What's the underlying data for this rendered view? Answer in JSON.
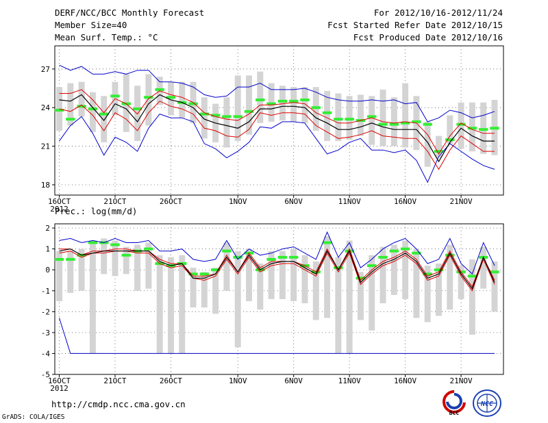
{
  "header": {
    "title": "DERF/NCC/BCC Monthly Forecast",
    "members": "Member Size=40",
    "variable": "Mean Surf. Temp.: °C",
    "period": "For 2012/10/16-2012/11/24",
    "started": "Fcst Started Refer Date 2012/10/15",
    "produced": "Fcst Produced Date 2012/10/16"
  },
  "footer": {
    "url": "http://cmdp.ncc.cma.gov.cn",
    "grads": "GrADS: COLA/IGES",
    "logo_bcc": "BCC",
    "logo_ncc": "NCC"
  },
  "colors": {
    "box": "#d4d4d4",
    "mean": "#000000",
    "spread": "#dd0000",
    "extreme": "#0000cc",
    "median": "#33ee33",
    "grid": "#555555"
  },
  "chart_data": [
    {
      "type": "box-ensemble",
      "title": "Mean Surf. Temp.: °C",
      "xlabel": "",
      "ylabel": "°C",
      "ylim": [
        17.2,
        28.8
      ],
      "yticks": [
        18,
        21,
        24,
        27
      ],
      "xlim": [
        -0.4,
        39.8
      ],
      "xtick_positions": [
        0,
        5,
        10,
        16,
        21,
        26,
        31,
        36
      ],
      "xtick_labels": [
        "16OCT",
        "21OCT",
        "26OCT",
        "1NOV",
        "6NOV",
        "11NOV",
        "16NOV",
        "21NOV"
      ],
      "year_label": "2012",
      "days": 40,
      "mean": [
        24.6,
        24.5,
        25.0,
        24.0,
        23.0,
        24.3,
        23.9,
        22.9,
        24.3,
        25.0,
        24.6,
        24.4,
        24.0,
        23.1,
        22.8,
        22.6,
        22.4,
        22.9,
        23.9,
        23.9,
        24.1,
        24.1,
        24.0,
        23.2,
        22.8,
        22.3,
        22.3,
        22.5,
        22.8,
        22.5,
        22.3,
        22.3,
        22.3,
        21.3,
        19.8,
        21.3,
        22.4,
        21.8,
        21.4,
        21.4
      ],
      "upper": [
        25.1,
        25.1,
        25.4,
        24.6,
        23.6,
        24.7,
        24.3,
        23.5,
        24.7,
        25.3,
        25.0,
        24.8,
        24.4,
        23.6,
        23.3,
        23.1,
        23.0,
        23.5,
        24.2,
        24.2,
        24.3,
        24.4,
        24.3,
        23.6,
        23.2,
        22.8,
        22.8,
        23.0,
        23.2,
        22.9,
        22.8,
        22.9,
        22.8,
        21.9,
        20.4,
        21.8,
        22.8,
        22.3,
        22.0,
        22.0
      ],
      "lower": [
        23.9,
        23.7,
        24.2,
        23.4,
        22.2,
        23.6,
        23.1,
        22.2,
        23.6,
        24.5,
        24.1,
        23.9,
        23.5,
        22.4,
        22.2,
        21.8,
        21.7,
        22.3,
        23.6,
        23.4,
        23.6,
        23.6,
        23.5,
        22.6,
        22.1,
        21.6,
        21.7,
        21.9,
        22.2,
        21.8,
        21.7,
        21.6,
        21.6,
        20.6,
        19.2,
        20.7,
        21.8,
        21.2,
        20.6,
        20.6
      ],
      "max": [
        27.3,
        26.9,
        27.2,
        26.6,
        26.6,
        26.8,
        26.6,
        26.9,
        26.9,
        26.0,
        26.0,
        25.9,
        25.6,
        25.0,
        24.8,
        24.9,
        25.6,
        25.6,
        25.9,
        25.4,
        25.4,
        25.4,
        25.5,
        25.2,
        24.8,
        24.6,
        24.5,
        24.5,
        24.6,
        24.5,
        24.6,
        24.3,
        24.4,
        22.9,
        23.2,
        23.8,
        23.6,
        23.2,
        23.4,
        23.7
      ],
      "min": [
        21.4,
        22.6,
        23.3,
        22.0,
        20.3,
        21.7,
        21.3,
        20.6,
        22.4,
        23.5,
        23.2,
        23.2,
        22.9,
        21.2,
        20.8,
        20.1,
        20.6,
        21.3,
        22.5,
        22.4,
        22.9,
        22.9,
        22.8,
        21.6,
        20.4,
        20.7,
        21.3,
        21.6,
        20.7,
        20.7,
        20.5,
        20.7,
        19.9,
        18.2,
        20.2,
        21.2,
        20.6,
        20.0,
        19.5,
        19.2
      ],
      "median": [
        23.8,
        23.1,
        24.1,
        23.9,
        23.5,
        24.9,
        24.3,
        23.9,
        24.8,
        25.4,
        24.8,
        24.4,
        24.3,
        23.5,
        23.4,
        23.3,
        23.3,
        23.7,
        24.6,
        24.3,
        24.5,
        24.5,
        24.6,
        24.0,
        23.6,
        23.1,
        23.1,
        23.0,
        23.3,
        22.7,
        22.7,
        22.8,
        22.9,
        22.7,
        20.6,
        21.5,
        22.7,
        22.4,
        22.3,
        22.4
      ],
      "box_top": [
        25.6,
        25.9,
        26.0,
        25.2,
        24.9,
        26.0,
        26.6,
        25.7,
        26.6,
        26.4,
        26.0,
        26.0,
        26.0,
        24.8,
        24.3,
        24.8,
        26.5,
        26.5,
        26.8,
        25.9,
        25.7,
        25.6,
        25.6,
        25.6,
        25.3,
        25.1,
        24.9,
        25.0,
        24.9,
        25.4,
        24.8,
        25.9,
        24.9,
        22.9,
        21.8,
        23.4,
        24.4,
        24.4,
        24.4,
        24.6
      ],
      "box_bot": [
        22.2,
        22.6,
        23.3,
        22.1,
        21.3,
        23.4,
        22.1,
        21.4,
        22.6,
        24.2,
        23.4,
        23.2,
        22.8,
        21.6,
        21.3,
        20.9,
        21.4,
        21.9,
        22.8,
        22.9,
        23.0,
        22.9,
        22.8,
        22.2,
        21.4,
        21.4,
        21.5,
        21.8,
        21.1,
        21.0,
        21.0,
        20.9,
        20.7,
        19.4,
        20.1,
        21.2,
        20.8,
        20.6,
        20.4,
        20.3
      ]
    },
    {
      "type": "box-ensemble",
      "title": "Prec.: log(mm/d)",
      "xlabel": "",
      "ylabel": "log(mm/d)",
      "ylim": [
        -5,
        2.2
      ],
      "yticks": [
        -5,
        -4,
        -3,
        -2,
        -1,
        0,
        1,
        2
      ],
      "xlim": [
        -0.4,
        39.8
      ],
      "xtick_positions": [
        0,
        5,
        10,
        16,
        21,
        26,
        31,
        36
      ],
      "xtick_labels": [
        "16OCT",
        "21OCT",
        "26OCT",
        "1NOV",
        "6NOV",
        "11NOV",
        "16NOV",
        "21NOV"
      ],
      "year_label": "2012",
      "days": 40,
      "mean": [
        0.9,
        1.0,
        0.7,
        0.8,
        0.9,
        0.9,
        0.9,
        0.9,
        0.9,
        0.4,
        0.2,
        0.3,
        -0.4,
        -0.4,
        -0.2,
        0.6,
        -0.1,
        0.7,
        0.0,
        0.3,
        0.4,
        0.4,
        0.1,
        -0.2,
        0.9,
        0.0,
        0.9,
        -0.6,
        -0.1,
        0.3,
        0.5,
        0.8,
        0.4,
        -0.4,
        -0.2,
        0.8,
        -0.2,
        -0.9,
        0.6,
        -0.6
      ],
      "upper": [
        1.0,
        1.0,
        0.7,
        0.9,
        0.9,
        1.0,
        1.0,
        0.9,
        0.9,
        0.5,
        0.3,
        0.3,
        -0.3,
        -0.3,
        -0.2,
        0.7,
        -0.1,
        0.8,
        0.1,
        0.4,
        0.4,
        0.4,
        0.2,
        -0.1,
        1.0,
        0.0,
        1.0,
        -0.5,
        0.0,
        0.4,
        0.6,
        0.9,
        0.5,
        -0.3,
        -0.1,
        0.9,
        -0.1,
        -0.8,
        0.6,
        -0.5
      ],
      "lower": [
        0.8,
        0.9,
        0.6,
        0.8,
        0.8,
        0.9,
        0.9,
        0.8,
        0.8,
        0.3,
        0.1,
        0.2,
        -0.4,
        -0.5,
        -0.3,
        0.5,
        -0.2,
        0.6,
        -0.1,
        0.2,
        0.3,
        0.3,
        0.0,
        -0.3,
        0.8,
        -0.1,
        0.8,
        -0.7,
        -0.2,
        0.2,
        0.4,
        0.7,
        0.3,
        -0.5,
        -0.3,
        0.7,
        -0.3,
        -1.0,
        0.5,
        -0.7
      ],
      "max": [
        1.4,
        1.5,
        1.3,
        1.4,
        1.3,
        1.5,
        1.3,
        1.3,
        1.4,
        0.9,
        0.9,
        1.0,
        0.5,
        0.4,
        0.5,
        1.4,
        0.5,
        1.0,
        0.7,
        0.8,
        1.0,
        1.1,
        0.8,
        0.5,
        1.8,
        0.6,
        1.3,
        0.1,
        0.5,
        1.0,
        1.3,
        1.5,
        1.0,
        0.3,
        0.5,
        1.5,
        0.3,
        -0.2,
        1.3,
        0.2
      ],
      "min": [
        -2.3,
        -4.0,
        -4.0,
        -4.0,
        -4.0,
        -4.0,
        -4.0,
        -4.0,
        -4.0,
        -4.0,
        -4.0,
        -4.0,
        -4.0,
        -4.0,
        -4.0,
        -4.0,
        -4.0,
        -4.0,
        -4.0,
        -4.0,
        -4.0,
        -4.0,
        -4.0,
        -4.0,
        -4.0,
        -4.0,
        -4.0,
        -4.0,
        -4.0,
        -4.0,
        -4.0,
        -4.0,
        -4.0,
        -4.0,
        -4.0,
        -4.0,
        -4.0,
        -4.0,
        -4.0,
        -4.0
      ],
      "median": [
        0.5,
        0.5,
        0.7,
        1.3,
        1.3,
        1.2,
        0.7,
        0.9,
        1.0,
        0.3,
        0.2,
        0.3,
        -0.2,
        -0.2,
        0.0,
        0.9,
        0.6,
        0.8,
        0.0,
        0.5,
        0.6,
        0.6,
        0.2,
        -0.1,
        1.3,
        0.1,
        0.9,
        -0.4,
        0.2,
        0.6,
        0.9,
        1.0,
        0.8,
        -0.2,
        0.0,
        0.7,
        -0.1,
        -0.3,
        0.6,
        -0.1
      ],
      "box_top": [
        0.9,
        0.9,
        1.0,
        1.4,
        1.5,
        1.4,
        1.1,
        1.2,
        1.3,
        0.7,
        0.6,
        0.7,
        0.1,
        -0.1,
        0.1,
        1.3,
        0.9,
        1.0,
        0.3,
        0.9,
        0.9,
        1.0,
        0.7,
        0.4,
        1.6,
        0.6,
        1.4,
        -0.1,
        0.7,
        1.1,
        1.2,
        1.4,
        1.0,
        0.2,
        0.3,
        1.2,
        0.2,
        0.5,
        1.1,
        0.4
      ],
      "box_bot": [
        -1.5,
        -1.1,
        -1.0,
        -4.0,
        -0.2,
        -0.3,
        -0.2,
        -1.0,
        -0.9,
        -4.0,
        -4.0,
        -4.0,
        -1.8,
        -1.8,
        -2.1,
        -1.0,
        -3.7,
        -1.5,
        -1.9,
        -1.4,
        -1.4,
        -1.5,
        -1.6,
        -2.4,
        -2.3,
        -4.0,
        -4.0,
        -2.4,
        -2.9,
        -1.6,
        -1.2,
        -1.4,
        -2.3,
        -2.5,
        -2.2,
        -1.9,
        -1.4,
        -3.1,
        -0.9,
        -2.0
      ]
    }
  ]
}
